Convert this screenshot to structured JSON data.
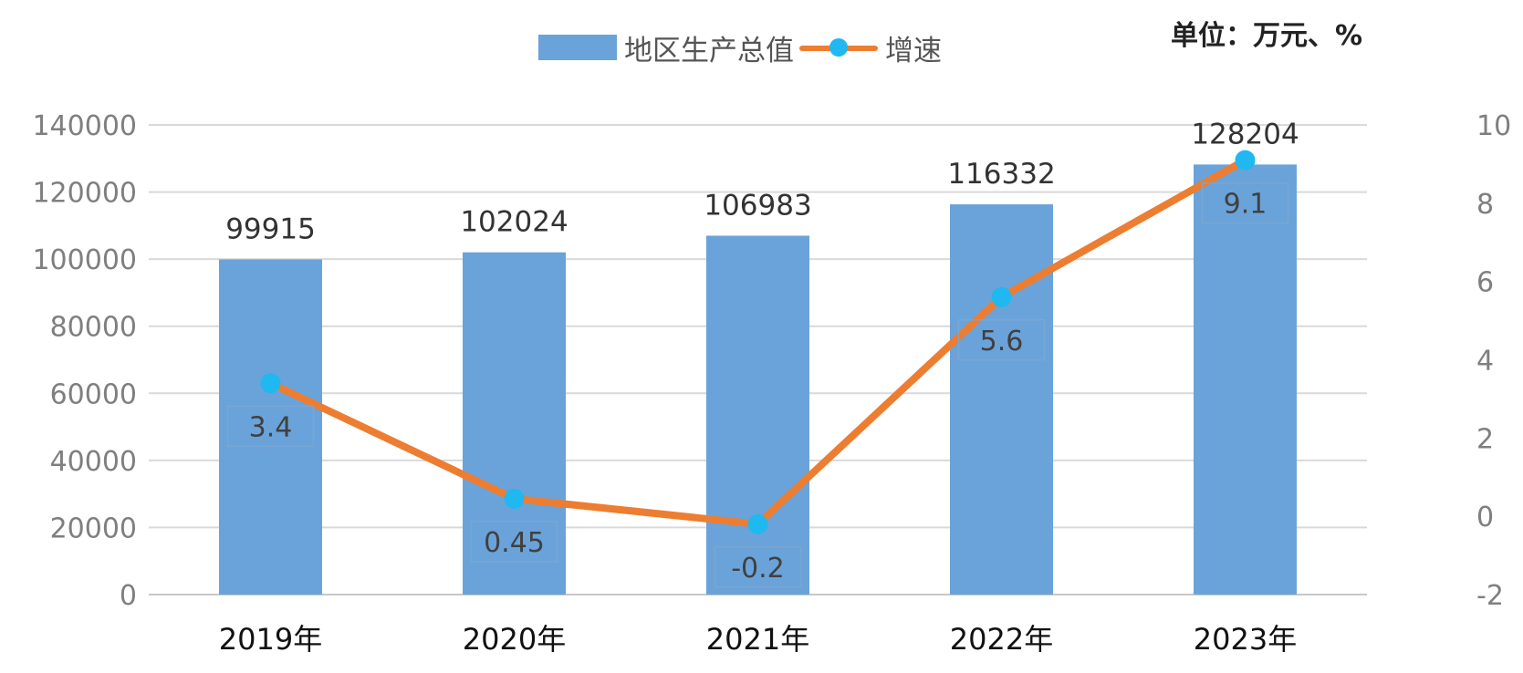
{
  "chart_data": {
    "type": "bar",
    "unit_label": "单位：万元、%",
    "categories": [
      "2019年",
      "2020年",
      "2021年",
      "2022年",
      "2023年"
    ],
    "series": [
      {
        "name": "地区生产总值",
        "type": "bar",
        "axis": "left",
        "values": [
          99915,
          102024,
          106983,
          116332,
          128204
        ],
        "labels": [
          "99915",
          "102024",
          "106983",
          "116332",
          "128204"
        ],
        "color": "#6aa3d9"
      },
      {
        "name": "增速",
        "type": "line",
        "axis": "right",
        "values": [
          3.4,
          0.45,
          -0.2,
          5.6,
          9.1
        ],
        "labels": [
          "3.4",
          "0.45",
          "-0.2",
          "5.6",
          "9.1"
        ],
        "color": "#ed7d31",
        "marker_color": "#1fb8f0"
      }
    ],
    "y_left": {
      "min": 0,
      "max": 140000,
      "ticks": [
        "0",
        "20000",
        "40000",
        "60000",
        "80000",
        "100000",
        "120000",
        "140000"
      ],
      "tick_values": [
        0,
        20000,
        40000,
        60000,
        80000,
        100000,
        120000,
        140000
      ]
    },
    "y_right": {
      "min": -2,
      "max": 10,
      "ticks": [
        "-2",
        "0",
        "2",
        "4",
        "6",
        "8",
        "10"
      ],
      "tick_values": [
        -2,
        0,
        2,
        4,
        6,
        8,
        10
      ]
    },
    "grid": true,
    "legend_position": "top-center"
  }
}
